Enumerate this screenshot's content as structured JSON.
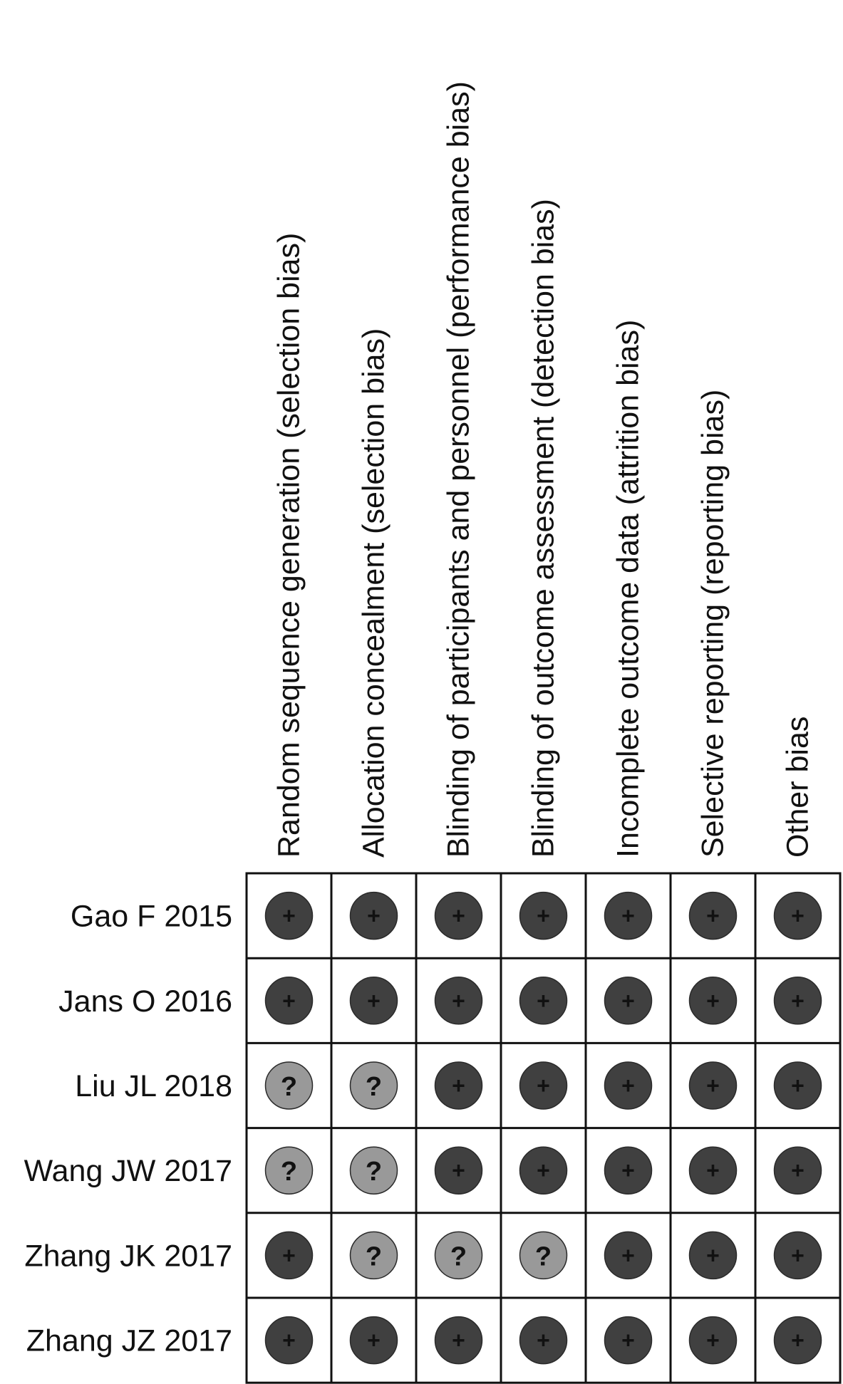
{
  "chart_data": {
    "type": "table",
    "title": "",
    "domains": [
      "Random sequence generation (selection bias)",
      "Allocation concealment (selection bias)",
      "Blinding of participants and personnel (performance bias)",
      "Blinding of outcome assessment (detection bias)",
      "Incomplete outcome data (attrition bias)",
      "Selective reporting (reporting bias)",
      "Other bias"
    ],
    "studies": [
      {
        "name": "Gao F 2015",
        "ratings": [
          "+",
          "+",
          "+",
          "+",
          "+",
          "+",
          "+"
        ]
      },
      {
        "name": "Jans O 2016",
        "ratings": [
          "+",
          "+",
          "+",
          "+",
          "+",
          "+",
          "+"
        ]
      },
      {
        "name": "Liu JL 2018",
        "ratings": [
          "?",
          "?",
          "+",
          "+",
          "+",
          "+",
          "+"
        ]
      },
      {
        "name": "Wang JW 2017",
        "ratings": [
          "?",
          "?",
          "+",
          "+",
          "+",
          "+",
          "+"
        ]
      },
      {
        "name": "Zhang JK 2017",
        "ratings": [
          "+",
          "?",
          "?",
          "?",
          "+",
          "+",
          "+"
        ]
      },
      {
        "name": "Zhang JZ 2017",
        "ratings": [
          "+",
          "+",
          "+",
          "+",
          "+",
          "+",
          "+"
        ]
      }
    ],
    "rating_colors": {
      "+": "#404040",
      "?": "#999999"
    },
    "grid_color": "#111111"
  }
}
